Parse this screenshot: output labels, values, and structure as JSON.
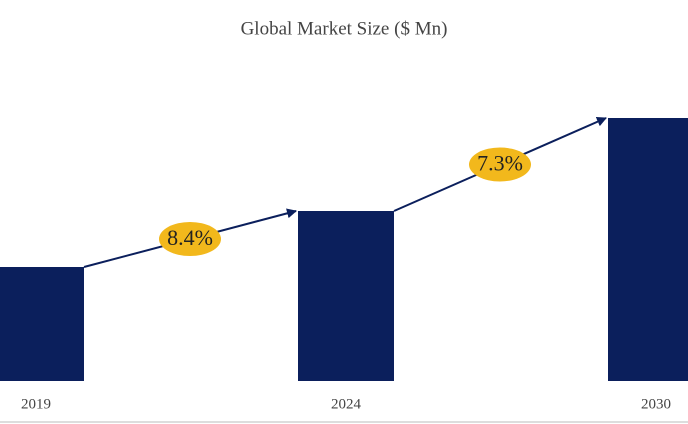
{
  "chart_data": {
    "type": "bar",
    "title": "Global Market Size ($ Mn)",
    "categories": [
      "2019",
      "2024",
      "2030"
    ],
    "values": [
      114,
      170,
      263
    ],
    "color": "#0b1f5c",
    "ylim": [
      0,
      300
    ],
    "annotations": [
      "8.4%",
      "7.3%"
    ],
    "annotation_color": "#f2b81c"
  }
}
